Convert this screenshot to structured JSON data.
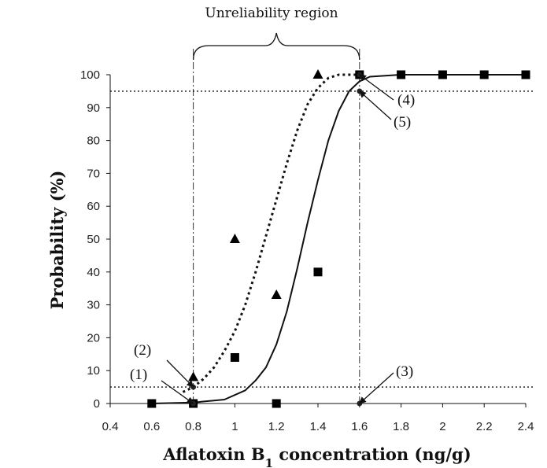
{
  "chart_data": {
    "type": "scatter",
    "title": "",
    "xlabel": {
      "main": "Aflatoxin B",
      "subscript": "1",
      "suffix": " concentration (ng/g)"
    },
    "ylabel": "Probability (%)",
    "xlim": [
      0.4,
      2.4
    ],
    "ylim": [
      0,
      100
    ],
    "xticks": [
      0.4,
      0.6,
      0.8,
      1,
      1.2,
      1.4,
      1.6,
      1.8,
      2,
      2.2,
      2.4
    ],
    "xtick_labels": [
      "0.4",
      "0.6",
      "0.8",
      "1",
      "1.2",
      "1.4",
      "1.6",
      "1.8",
      "2",
      "2.2",
      "2.4"
    ],
    "yticks": [
      0,
      10,
      20,
      30,
      40,
      50,
      60,
      70,
      80,
      90,
      100
    ],
    "ytick_labels": [
      "0",
      "10",
      "20",
      "30",
      "40",
      "50",
      "60",
      "70",
      "80",
      "90",
      "100"
    ],
    "grid": false,
    "legend": "none",
    "region_label": "Unreliability region",
    "region_bounds": [
      0.8,
      1.6
    ],
    "reference_lines_y": [
      5,
      95
    ],
    "series": [
      {
        "marker": "square",
        "style": "solid",
        "x": [
          0.6,
          0.8,
          1.0,
          1.2,
          1.4,
          1.6,
          1.8,
          2.0,
          2.2,
          2.4
        ],
        "y": [
          0,
          0,
          14,
          0,
          40,
          100,
          100,
          100,
          100,
          100
        ]
      },
      {
        "marker": "triangle",
        "style": "dotted",
        "x": [
          0.8,
          1.0,
          1.2,
          1.4
        ],
        "y": [
          8,
          50,
          33,
          100
        ]
      }
    ],
    "fitted_curves": [
      {
        "style": "solid",
        "points": [
          [
            0.6,
            0
          ],
          [
            0.8,
            0.3
          ],
          [
            0.95,
            1.2
          ],
          [
            1.05,
            4
          ],
          [
            1.1,
            7
          ],
          [
            1.15,
            11
          ],
          [
            1.2,
            18
          ],
          [
            1.25,
            28
          ],
          [
            1.3,
            41
          ],
          [
            1.35,
            55
          ],
          [
            1.4,
            68
          ],
          [
            1.45,
            80
          ],
          [
            1.5,
            89
          ],
          [
            1.55,
            95
          ],
          [
            1.6,
            98
          ],
          [
            1.65,
            99.4
          ],
          [
            1.8,
            100
          ],
          [
            2.4,
            100
          ]
        ]
      },
      {
        "style": "dotted",
        "points": [
          [
            0.75,
            3.5
          ],
          [
            0.8,
            5
          ],
          [
            0.85,
            7.5
          ],
          [
            0.9,
            11
          ],
          [
            0.95,
            16
          ],
          [
            1.0,
            22
          ],
          [
            1.05,
            30
          ],
          [
            1.1,
            40
          ],
          [
            1.15,
            51
          ],
          [
            1.2,
            62
          ],
          [
            1.25,
            73
          ],
          [
            1.3,
            83
          ],
          [
            1.35,
            91
          ],
          [
            1.4,
            96
          ],
          [
            1.45,
            99
          ],
          [
            1.5,
            100
          ],
          [
            1.6,
            100
          ]
        ]
      }
    ],
    "annotations": [
      {
        "label": "(1)",
        "x": 0.8,
        "y": 0
      },
      {
        "label": "(2)",
        "x": 0.8,
        "y": 5
      },
      {
        "label": "(3)",
        "x": 1.6,
        "y": 0
      },
      {
        "label": "(4)",
        "x": 1.6,
        "y": 100
      },
      {
        "label": "(5)",
        "x": 1.6,
        "y": 95
      }
    ]
  }
}
